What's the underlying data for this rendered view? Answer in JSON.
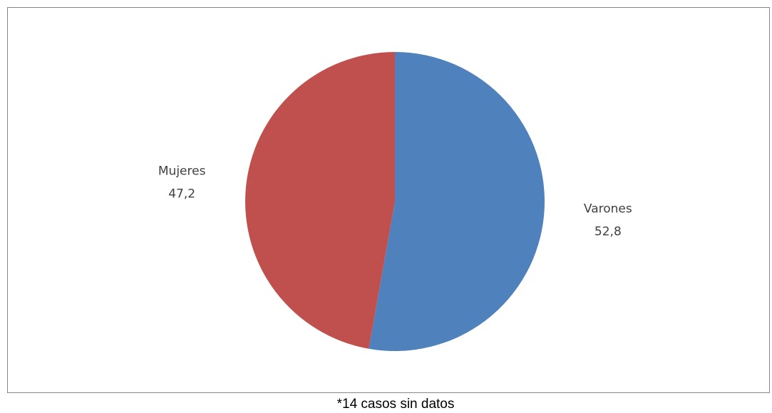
{
  "chart_data": {
    "type": "pie",
    "categories": [
      "Varones",
      "Mujeres"
    ],
    "values": [
      52.8,
      47.2
    ],
    "value_labels": [
      "52,8",
      "47,2"
    ],
    "colors": [
      "#4f81bd",
      "#c0504d"
    ],
    "note": "*14 casos sin datos"
  }
}
